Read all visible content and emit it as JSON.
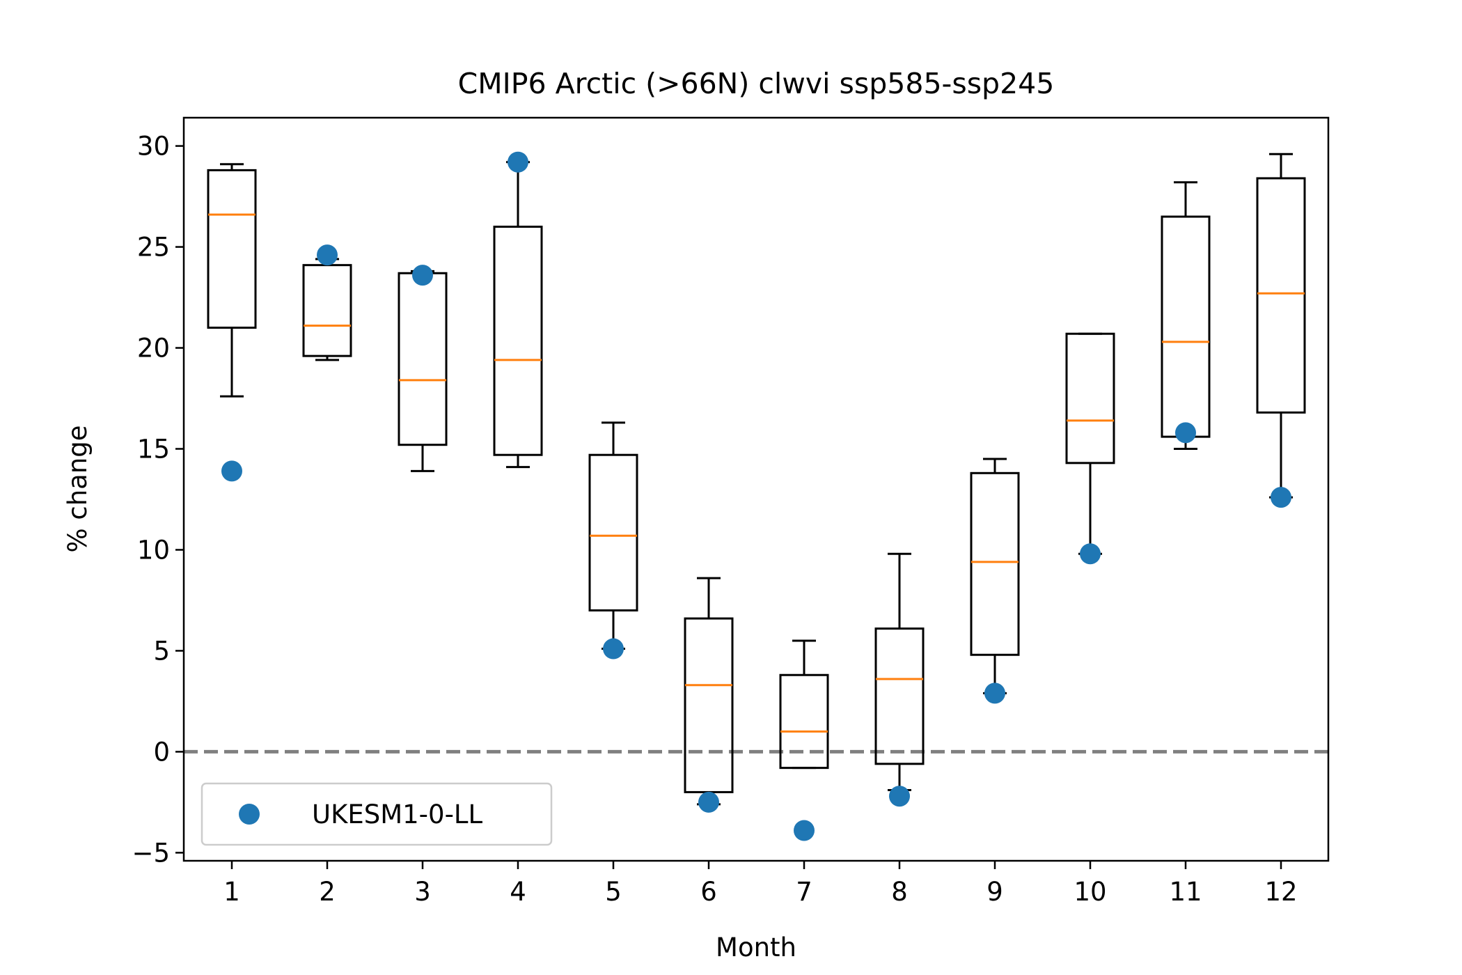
{
  "chart_data": {
    "type": "box",
    "title": "CMIP6 Arctic (>66N) clwvi ssp585-ssp245",
    "xlabel": "Month",
    "ylabel": "% change",
    "categories": [
      "1",
      "2",
      "3",
      "4",
      "5",
      "6",
      "7",
      "8",
      "9",
      "10",
      "11",
      "12"
    ],
    "ylim": [
      -5.4,
      31.4
    ],
    "yticks": [
      -5,
      0,
      5,
      10,
      15,
      20,
      25,
      30
    ],
    "ytick_labels": [
      "−5",
      "0",
      "5",
      "10",
      "15",
      "20",
      "25",
      "30"
    ],
    "grid": false,
    "reference_line": {
      "y": 0,
      "style": "dashed",
      "color": "#808080"
    },
    "boxes": [
      {
        "category": "1",
        "whislo": 17.6,
        "q1": 21.0,
        "med": 26.6,
        "q3": 28.8,
        "whishi": 29.1
      },
      {
        "category": "2",
        "whislo": 19.4,
        "q1": 19.6,
        "med": 21.1,
        "q3": 24.1,
        "whishi": 24.4
      },
      {
        "category": "3",
        "whislo": 13.9,
        "q1": 15.2,
        "med": 18.4,
        "q3": 23.7,
        "whishi": 23.8
      },
      {
        "category": "4",
        "whislo": 14.1,
        "q1": 14.7,
        "med": 19.4,
        "q3": 26.0,
        "whishi": 29.2
      },
      {
        "category": "5",
        "whislo": 5.1,
        "q1": 7.0,
        "med": 10.7,
        "q3": 14.7,
        "whishi": 16.3
      },
      {
        "category": "6",
        "whislo": -2.6,
        "q1": -2.0,
        "med": 3.3,
        "q3": 6.6,
        "whishi": 8.6
      },
      {
        "category": "7",
        "whislo": -0.8,
        "q1": -0.8,
        "med": 1.0,
        "q3": 3.8,
        "whishi": 5.5
      },
      {
        "category": "8",
        "whislo": -1.9,
        "q1": -0.6,
        "med": 3.6,
        "q3": 6.1,
        "whishi": 9.8
      },
      {
        "category": "9",
        "whislo": 2.9,
        "q1": 4.8,
        "med": 9.4,
        "q3": 13.8,
        "whishi": 14.5
      },
      {
        "category": "10",
        "whislo": 9.8,
        "q1": 14.3,
        "med": 16.4,
        "q3": 20.7,
        "whishi": 20.7
      },
      {
        "category": "11",
        "whislo": 15.0,
        "q1": 15.6,
        "med": 20.3,
        "q3": 26.5,
        "whishi": 28.2
      },
      {
        "category": "12",
        "whislo": 12.6,
        "q1": 16.8,
        "med": 22.7,
        "q3": 28.4,
        "whishi": 29.6
      }
    ],
    "series": [
      {
        "name": "UKESM1-0-LL",
        "type": "scatter",
        "color": "#1f77b4",
        "values": [
          13.9,
          24.6,
          23.6,
          29.2,
          5.1,
          -2.5,
          -3.9,
          -2.2,
          2.9,
          9.8,
          15.8,
          12.6
        ]
      }
    ],
    "box_color": "#000000",
    "median_color": "#ff7f0e",
    "legend": {
      "position": "lower-left",
      "entries": [
        "UKESM1-0-LL"
      ]
    }
  }
}
